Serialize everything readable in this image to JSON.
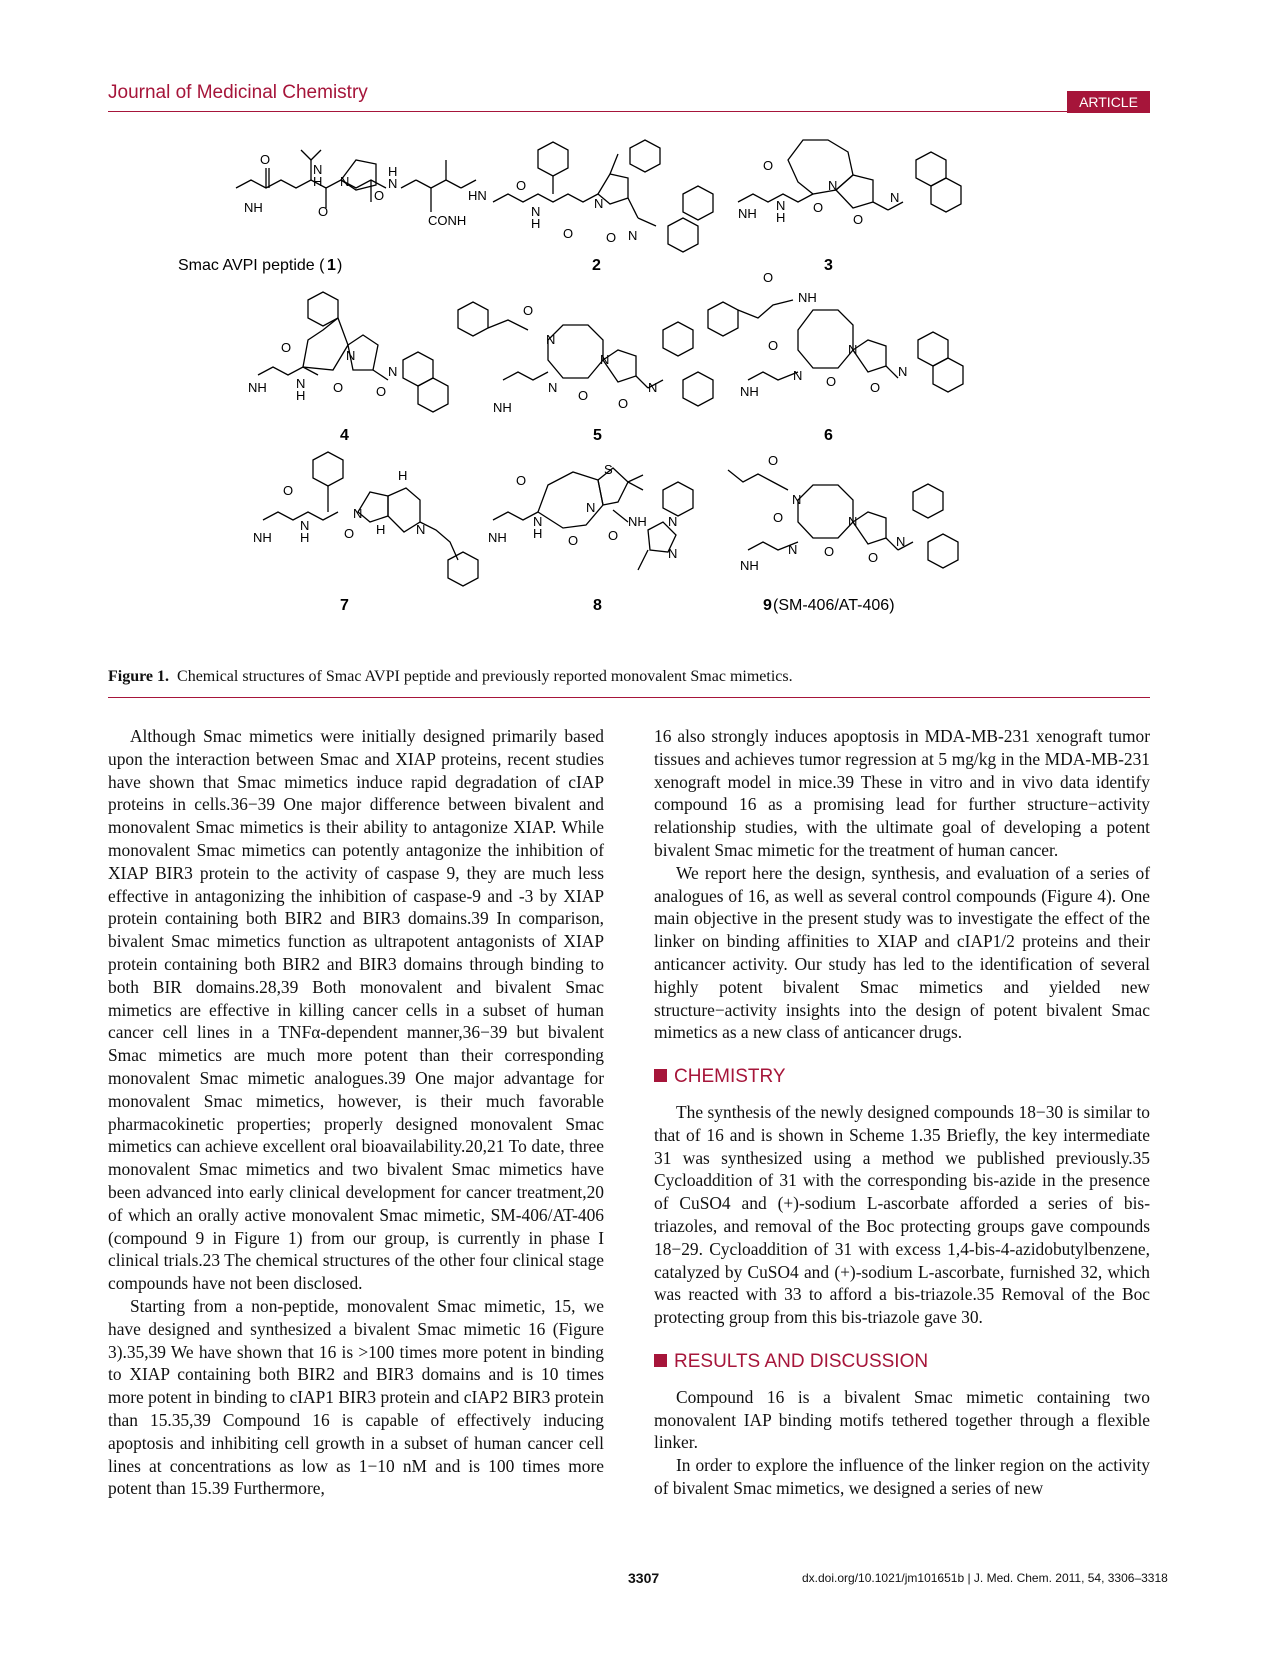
{
  "header": {
    "journal": "Journal of Medicinal Chemistry",
    "badge": "ARTICLE"
  },
  "figure": {
    "compound_labels": {
      "c1_text": "Smac AVPI peptide (",
      "c1_num": "1",
      "c1_end": ")",
      "c2": "2",
      "c3": "3",
      "c4": "4",
      "c5": "5",
      "c6": "6",
      "c7": "7",
      "c8": "8",
      "c9_num": "9",
      "c9_text": " (SM-406/AT-406)"
    },
    "caption_label": "Figure 1.",
    "caption_text": "Chemical structures of Smac AVPI peptide and previously reported monovalent Smac mimetics."
  },
  "body": {
    "left_p1": "Although Smac mimetics were initially designed primarily based upon the interaction between Smac and XIAP proteins, recent studies have shown that Smac mimetics induce rapid degradation of cIAP proteins in cells.36−39 One major difference between bivalent and monovalent Smac mimetics is their ability to antagonize XIAP. While monovalent Smac mimetics can potently antagonize the inhibition of XIAP BIR3 protein to the activity of caspase 9, they are much less effective in antagonizing the inhibition of caspase-9 and -3 by XIAP protein containing both BIR2 and BIR3 domains.39 In comparison, bivalent Smac mimetics function as ultrapotent antagonists of XIAP protein containing both BIR2 and BIR3 domains through binding to both BIR domains.28,39 Both monovalent and bivalent Smac mimetics are effective in killing cancer cells in a subset of human cancer cell lines in a TNFα-dependent manner,36−39 but bivalent Smac mimetics are much more potent than their corresponding monovalent Smac mimetic analogues.39 One major advantage for monovalent Smac mimetics, however, is their much favorable pharmacokinetic properties; properly designed monovalent Smac mimetics can achieve excellent oral bioavailability.20,21 To date, three monovalent Smac mimetics and two bivalent Smac mimetics have been advanced into early clinical development for cancer treatment,20 of which an orally active monovalent Smac mimetic, SM-406/AT-406 (compound 9 in Figure 1) from our group, is currently in phase I clinical trials.23 The chemical structures of the other four clinical stage compounds have not been disclosed.",
    "left_p2": "Starting from a non-peptide, monovalent Smac mimetic, 15, we have designed and synthesized a bivalent Smac mimetic 16 (Figure 3).35,39 We have shown that 16 is >100 times more potent in binding to XIAP containing both BIR2 and BIR3 domains and is 10 times more potent in binding to cIAP1 BIR3 protein and cIAP2 BIR3 protein than 15.35,39 Compound 16 is capable of effectively inducing apoptosis and inhibiting cell growth in a subset of human cancer cell lines at concentrations as low as 1−10 nM and is 100 times more potent than 15.39 Furthermore,",
    "right_p1": "16 also strongly induces apoptosis in MDA-MB-231 xenograft tumor tissues and achieves tumor regression at 5 mg/kg in the MDA-MB-231 xenograft model in mice.39 These in vitro and in vivo data identify compound 16 as a promising lead for further structure−activity relationship studies, with the ultimate goal of developing a potent bivalent Smac mimetic for the treatment of human cancer.",
    "right_p2": "We report here the design, synthesis, and evaluation of a series of analogues of 16, as well as several control compounds (Figure 4). One main objective in the present study was to investigate the effect of the linker on binding affinities to XIAP and cIAP1/2 proteins and their anticancer activity. Our study has led to the identification of several highly potent bivalent Smac mimetics and yielded new structure−activity insights into the design of potent bivalent Smac mimetics as a new class of anticancer drugs.",
    "section_chemistry": "CHEMISTRY",
    "chem_p1": "The synthesis of the newly designed compounds 18−30 is similar to that of 16 and is shown in Scheme 1.35 Briefly, the key intermediate 31 was synthesized using a method we published previously.35 Cycloaddition of 31 with the corresponding bis-azide in the presence of CuSO4 and (+)-sodium L-ascorbate afforded a series of bis-triazoles, and removal of the Boc protecting groups gave compounds 18−29. Cycloaddition of 31 with excess 1,4-bis-4-azidobutylbenzene, catalyzed by CuSO4 and (+)-sodium L-ascorbate, furnished 32, which was reacted with 33 to afford a bis-triazole.35 Removal of the Boc protecting group from this bis-triazole gave 30.",
    "section_results": "RESULTS AND DISCUSSION",
    "res_p1": "Compound 16 is a bivalent Smac mimetic containing two monovalent IAP binding motifs tethered together through a flexible linker.",
    "res_p2": "In order to explore the influence of the linker region on the activity of bivalent Smac mimetics, we designed a series of new"
  },
  "footer": {
    "page": "3307",
    "doi": "dx.doi.org/10.1021/jm101651b | J. Med. Chem. 2011, 54, 3306–3318"
  }
}
